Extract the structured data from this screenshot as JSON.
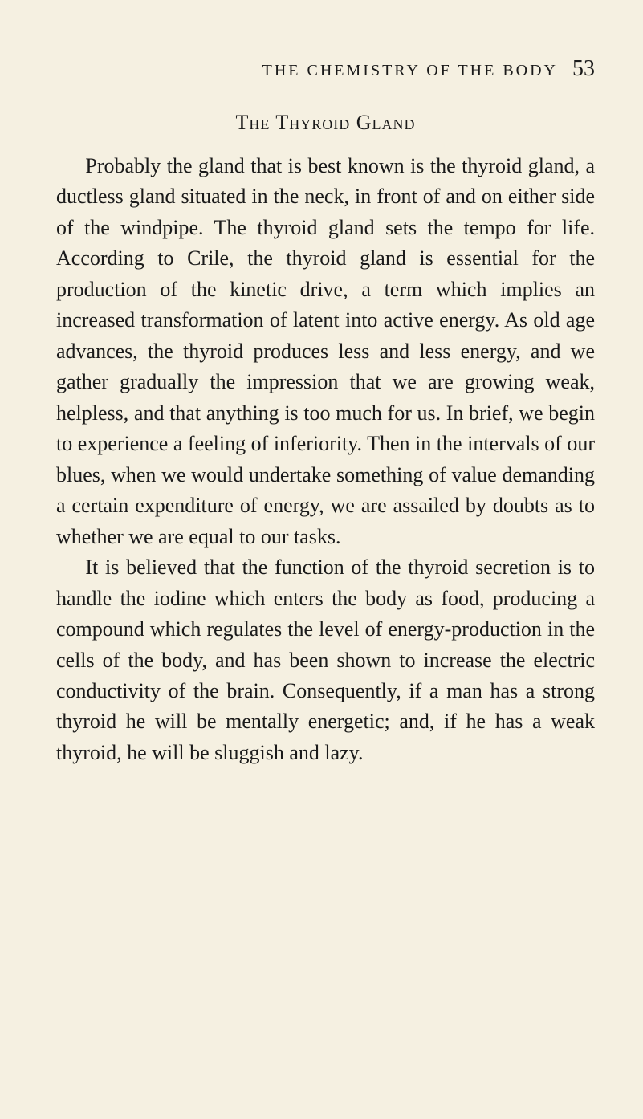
{
  "page": {
    "running_header": "THE CHEMISTRY OF THE BODY",
    "page_number": "53",
    "section_heading": "The Thyroid Gland",
    "paragraphs": [
      "Probably the gland that is best known is the thyroid gland, a ductless gland situated in the neck, in front of and on either side of the windpipe. The thyroid gland sets the tempo for life. According to Crile, the thyroid gland is essential for the production of the kinetic drive, a term which implies an increased trans­formation of latent into active energy. As old age advances, the thyroid produces less and less energy, and we gather gradually the im­pression that we are growing weak, helpless, and that anything is too much for us. In brief, we begin to experience a feeling of inferiority. Then in the intervals of our blues, when we would undertake something of value demanding a certain expenditure of energy, we are assailed by doubts as to whether we are equal to our tasks.",
      "It is believed that the function of the thyroid secretion is to handle the iodine which enters the body as food, producing a compound which regulates the level of energy-production in the cells of the body, and has been shown to increase the electric conductivity of the brain. Consequently, if a man has a strong thyroid he will be mentally energetic; and, if he has a weak thyroid, he will be sluggish and lazy."
    ]
  },
  "style": {
    "background_color": "#f5f0e1",
    "text_color": "#1a1a1a",
    "body_fontsize": 26,
    "header_fontsize": 20,
    "pagenum_fontsize": 28,
    "heading_fontsize": 26,
    "line_height": 1.48
  }
}
